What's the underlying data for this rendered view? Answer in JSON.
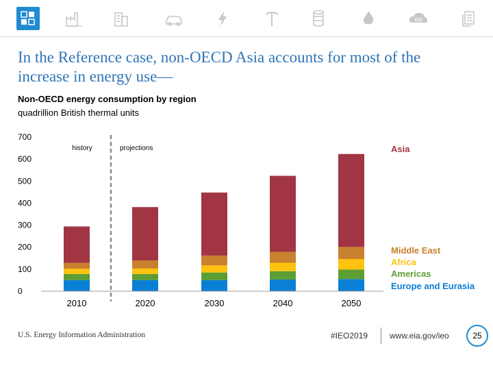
{
  "nav_icons": [
    {
      "name": "eia-logo-icon"
    },
    {
      "name": "factory-icon"
    },
    {
      "name": "buildings-icon"
    },
    {
      "name": "car-icon"
    },
    {
      "name": "electricity-icon"
    },
    {
      "name": "mining-icon"
    },
    {
      "name": "oil-barrel-icon"
    },
    {
      "name": "flame-icon"
    },
    {
      "name": "co2-icon"
    },
    {
      "name": "documents-icon"
    }
  ],
  "slide": {
    "title": "In the Reference case, non-OECD Asia accounts for most of the increase in energy use—"
  },
  "chart_data": {
    "type": "bar",
    "stacked": true,
    "title": "Non-OECD energy consumption by region",
    "subtitle": "quadrillion British thermal units",
    "categories": [
      "2010",
      "2020",
      "2030",
      "2040",
      "2050"
    ],
    "ylim": [
      0,
      700
    ],
    "yticks": [
      "0",
      "100",
      "200",
      "300",
      "400",
      "500",
      "600",
      "700"
    ],
    "annotations": {
      "history": "history",
      "projections": "projections"
    },
    "series": [
      {
        "name": "Europe and Eurasia",
        "color": "#0a7fd6",
        "values": [
          50,
          50,
          50,
          53,
          55
        ]
      },
      {
        "name": "Americas",
        "color": "#5d9e34",
        "values": [
          28,
          28,
          35,
          38,
          43
        ]
      },
      {
        "name": "Africa",
        "color": "#ffc20e",
        "values": [
          24,
          25,
          32,
          38,
          48
        ]
      },
      {
        "name": "Middle East",
        "color": "#c9802f",
        "values": [
          27,
          37,
          45,
          50,
          55
        ]
      },
      {
        "name": "Asia",
        "color": "#a13544",
        "values": [
          165,
          242,
          286,
          345,
          422
        ]
      }
    ]
  },
  "footer": {
    "source": "U.S. Energy Information Administration",
    "tag": "#IEO2019",
    "url": "www.eia.gov/ieo",
    "page": "25"
  },
  "colors": {
    "accent": "#1f8bd0",
    "title": "#2e75b6"
  }
}
